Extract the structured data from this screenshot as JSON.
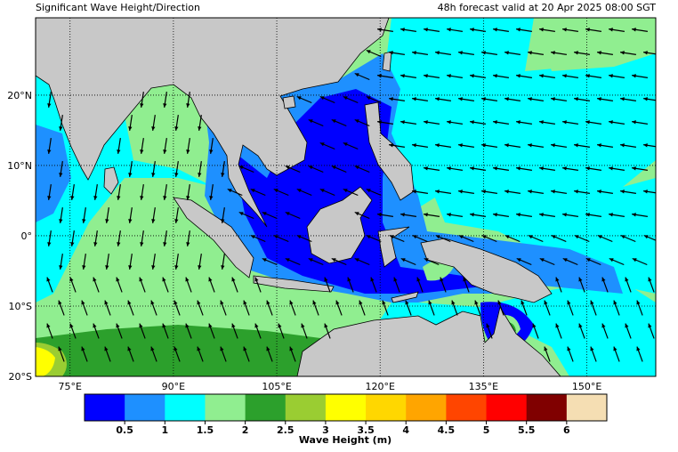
{
  "header": {
    "title": "Significant Wave Height/Direction",
    "valid": "48h forecast valid at 20 Apr 2025 08:00 SGT"
  },
  "map": {
    "xlim": [
      70,
      160
    ],
    "ylim": [
      -20,
      31
    ],
    "xticks": [
      {
        "value": 75,
        "label": "75°E"
      },
      {
        "value": 90,
        "label": "90°E"
      },
      {
        "value": 105,
        "label": "105°E"
      },
      {
        "value": 120,
        "label": "120°E"
      },
      {
        "value": 135,
        "label": "135°E"
      },
      {
        "value": 150,
        "label": "150°E"
      }
    ],
    "yticks": [
      {
        "value": -20,
        "label": "20°S"
      },
      {
        "value": -10,
        "label": "10°S"
      },
      {
        "value": 0,
        "label": "0°"
      },
      {
        "value": 10,
        "label": "10°N"
      },
      {
        "value": 20,
        "label": "20°N"
      }
    ]
  },
  "colorbar": {
    "label": "Wave Height (m)",
    "lim": [
      0,
      6.5
    ],
    "colors": [
      "#0000ff",
      "#1e90ff",
      "#00ffff",
      "#90ee90",
      "#2ca02c",
      "#9acd32",
      "#ffff00",
      "#ffd700",
      "#ffa500",
      "#ff4500",
      "#ff0000",
      "#800000",
      "#f5deb3"
    ],
    "ticks": [
      0.5,
      1,
      1.5,
      2,
      2.5,
      3,
      3.5,
      4,
      4.5,
      5,
      5.5,
      6
    ]
  }
}
